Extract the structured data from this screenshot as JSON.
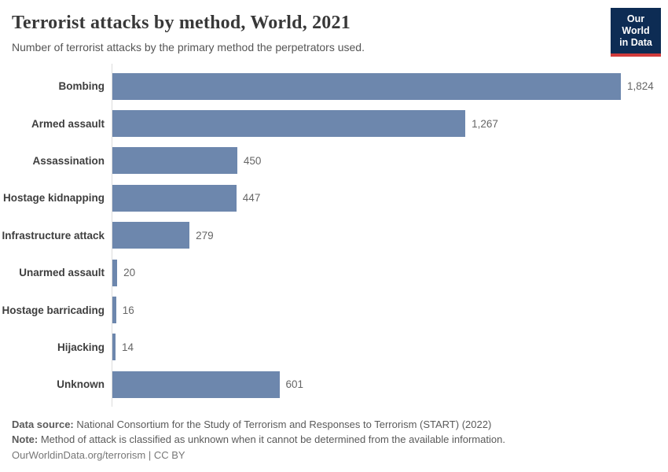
{
  "header": {
    "title": "Terrorist attacks by method, World, 2021",
    "subtitle": "Number of terrorist attacks by the primary method the perpetrators used.",
    "logo": {
      "line1": "Our World",
      "line2": "in Data"
    }
  },
  "chart_data": {
    "type": "bar",
    "orientation": "horizontal",
    "title": "Terrorist attacks by method, World, 2021",
    "xlabel": "",
    "ylabel": "",
    "categories": [
      "Bombing",
      "Armed assault",
      "Assassination",
      "Hostage kidnapping",
      "Infrastructure attack",
      "Unarmed assault",
      "Hostage barricading",
      "Hijacking",
      "Unknown"
    ],
    "values": [
      1824,
      1267,
      450,
      447,
      279,
      20,
      16,
      14,
      601
    ],
    "value_labels": [
      "1,824",
      "1,267",
      "450",
      "447",
      "279",
      "20",
      "16",
      "14",
      "601"
    ],
    "xlim": [
      0,
      1824
    ],
    "grid": false,
    "legend": "none",
    "bar_color": "#6d87ad"
  },
  "footer": {
    "data_source_label": "Data source:",
    "data_source_text": " National Consortium for the Study of Terrorism and Responses to Terrorism (START) (2022)",
    "note_label": "Note:",
    "note_text": " Method of attack is classified as unknown when it cannot be determined from the available information.",
    "license_text": "OurWorldinData.org/terrorism | CC BY"
  },
  "colors": {
    "bar": "#6d87ad",
    "axis_line": "#dcdcdc",
    "logo_bg": "#0d2c54",
    "logo_stripe": "#d13b3b",
    "title_text": "#383838",
    "body_text": "#5a5a5a"
  }
}
